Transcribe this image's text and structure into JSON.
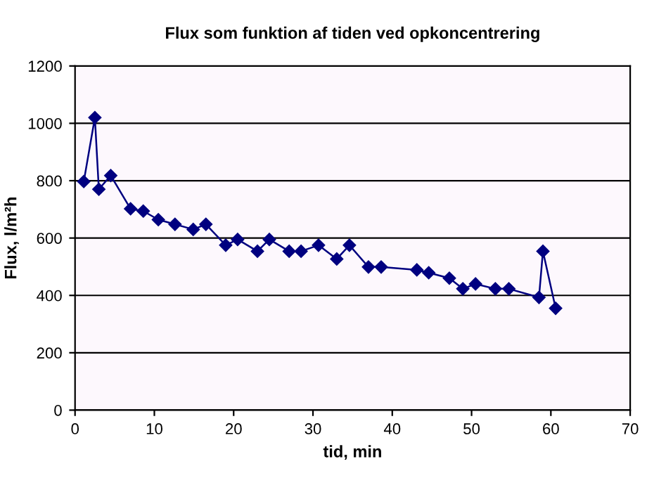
{
  "chart_data": {
    "type": "line",
    "title": "Flux som funktion af tiden ved opkoncentrering",
    "xlabel": "tid, min",
    "ylabel": "Flux, l/m²h",
    "series": [
      {
        "color": "#000080",
        "x": [
          1.1,
          2.5,
          3.0,
          4.5,
          7.0,
          8.6,
          10.5,
          12.6,
          14.9,
          16.5,
          19.0,
          20.5,
          23.0,
          24.5,
          27.0,
          28.5,
          30.7,
          33.0,
          34.6,
          37.0,
          38.6,
          43.1,
          44.6,
          47.2,
          48.9,
          50.5,
          53.0,
          54.7,
          58.5,
          59.0,
          60.6
        ],
        "values": [
          797,
          1020,
          770,
          818,
          702,
          694,
          664,
          648,
          630,
          648,
          575,
          595,
          554,
          595,
          554,
          554,
          575,
          527,
          575,
          499,
          499,
          489,
          479,
          460,
          423,
          440,
          423,
          423,
          393,
          554,
          355
        ]
      }
    ],
    "xlim": [
      0,
      70
    ],
    "xticks": [
      0,
      10,
      20,
      30,
      40,
      50,
      60,
      70
    ],
    "ylim": [
      0,
      1200
    ],
    "yticks": [
      0,
      200,
      400,
      600,
      800,
      1000,
      1200
    ],
    "grid": "y",
    "marker": "diamond",
    "line_style": "solid",
    "legend": false
  }
}
